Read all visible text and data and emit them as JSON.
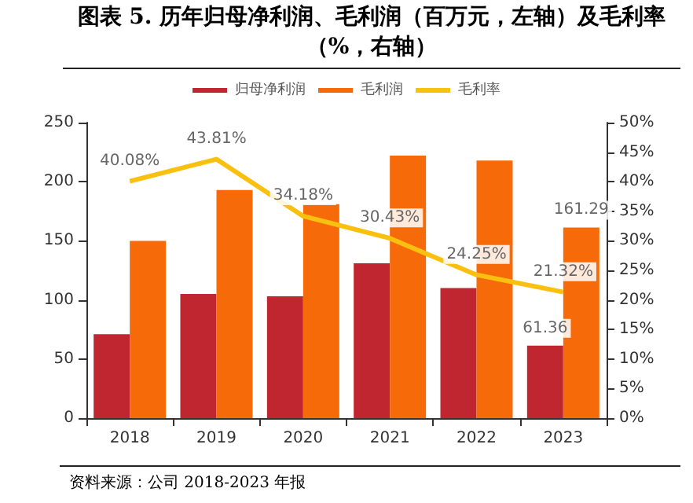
{
  "chart_data": {
    "type": "bar",
    "title": "图表 5.  历年归母净利润、毛利润（百万元，左轴）及毛利率（%，右轴）",
    "annotations": [
      "资料来源：公司 2018-2023 年报"
    ],
    "categories": [
      "2018",
      "2019",
      "2020",
      "2021",
      "2022",
      "2023"
    ],
    "series": [
      {
        "name": "归母净利润",
        "color": "#c0262f",
        "values": [
          71,
          105,
          103,
          131,
          110,
          61.36
        ],
        "value_labels": [
          null,
          null,
          null,
          null,
          null,
          "61.36"
        ]
      },
      {
        "name": "毛利润",
        "color": "#f76a0a",
        "values": [
          150,
          193,
          181,
          222,
          218,
          161.29
        ],
        "value_labels": [
          null,
          null,
          null,
          null,
          null,
          "161.29"
        ]
      },
      {
        "name": "毛利率",
        "type": "line",
        "axis": "y2",
        "color": "#f9c00f",
        "values": [
          40.08,
          43.81,
          34.18,
          30.43,
          24.25,
          21.32
        ],
        "value_labels": [
          "40.08%",
          "43.81%",
          "34.18%",
          "30.43%",
          "24.25%",
          "21.32%"
        ]
      }
    ],
    "ylim": [
      0,
      250
    ],
    "yticks": [
      0,
      50,
      100,
      150,
      200,
      250
    ],
    "y2lim": [
      0,
      50
    ],
    "y2ticks": [
      {
        "value": 0,
        "label": "0%"
      },
      {
        "value": 5,
        "label": "5%"
      },
      {
        "value": 10,
        "label": "10%"
      },
      {
        "value": 15,
        "label": "15%"
      },
      {
        "value": 20,
        "label": "20%"
      },
      {
        "value": 25,
        "label": "25%"
      },
      {
        "value": 30,
        "label": "30%"
      },
      {
        "value": 35,
        "label": "35%"
      },
      {
        "value": 40,
        "label": "40%"
      },
      {
        "value": 45,
        "label": "45%"
      },
      {
        "value": 50,
        "label": "50%"
      }
    ],
    "grid": false,
    "legend": "top",
    "marker": "none"
  }
}
